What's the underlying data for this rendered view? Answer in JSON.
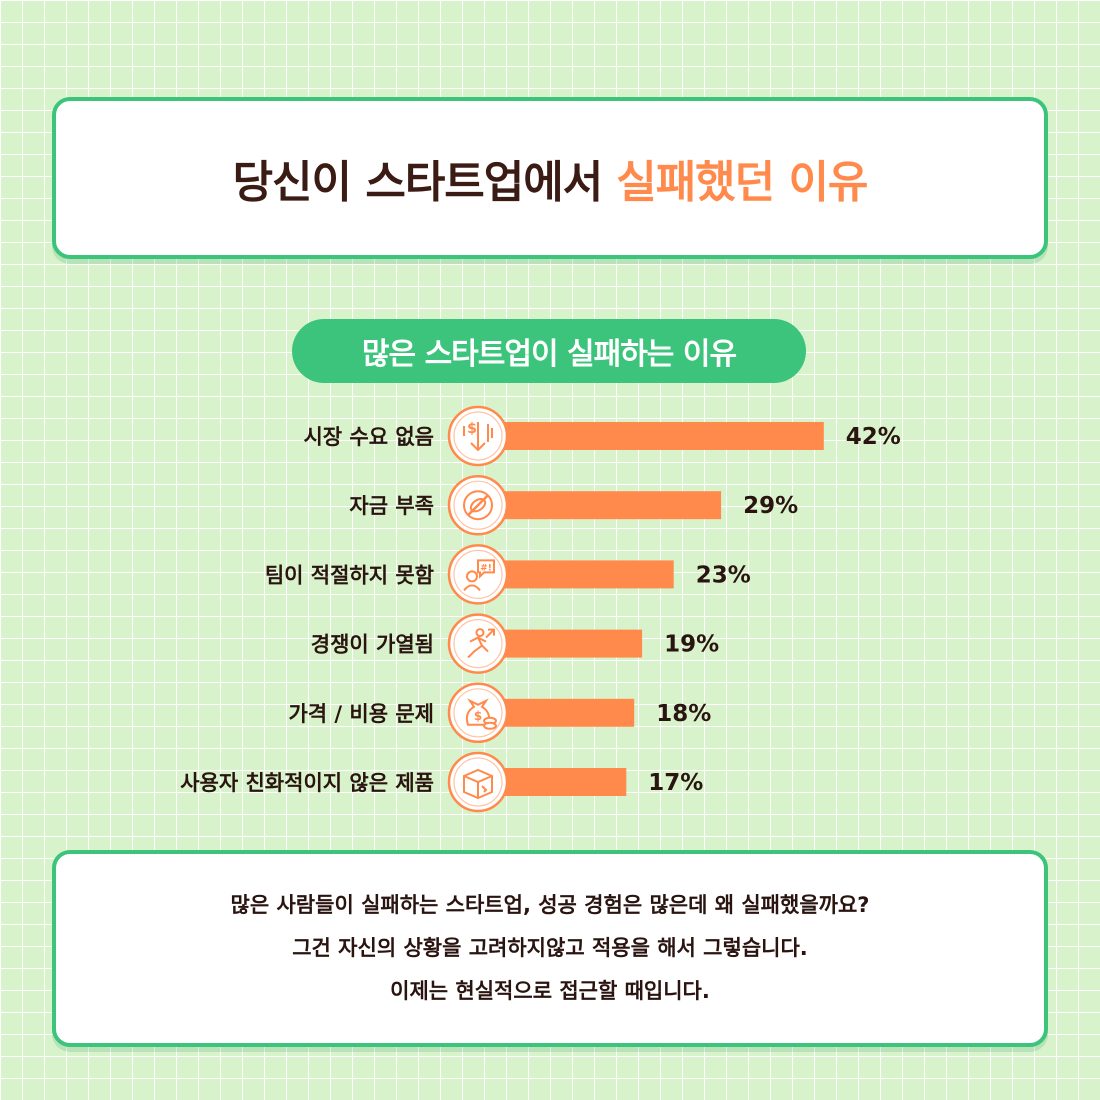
{
  "title": {
    "prefix": "당신이 스타트업에서",
    "highlight": "실패했던 이유"
  },
  "chart_title": "많은 스타트업이 실패하는 이유",
  "chart_data": {
    "type": "bar",
    "orientation": "horizontal",
    "categories": [
      "시장 수요 없음",
      "자금 부족",
      "팀이 적절하지 못함",
      "경쟁이 가열됨",
      "가격 / 비용 문제",
      "사용자 친화적이지 않은 제품"
    ],
    "values": [
      42,
      29,
      23,
      19,
      18,
      17
    ],
    "value_labels": [
      "42%",
      "29%",
      "23%",
      "19%",
      "18%",
      "17%"
    ],
    "icons": [
      "money-down-icon",
      "no-money-icon",
      "frustrated-person-icon",
      "running-person-icon",
      "money-bag-coins-icon",
      "broken-box-icon"
    ],
    "unit": "%",
    "bar_color": "#ff8a4c",
    "icon_color": "#ff8a4c"
  },
  "note": {
    "lines": [
      "많은 사람들이 실패하는 스타트업, 성공 경험은 많은데 왜 실패했을까요?",
      "그건 자신의 상황을 고려하지않고 적용을 해서 그렇습니다.",
      "이제는 현실적으로 접근할 때입니다."
    ]
  },
  "colors": {
    "accent_green": "#3cc47c",
    "accent_orange": "#ff8a4c",
    "text_dark": "#3a1c14",
    "background": "#d8f3cc"
  }
}
